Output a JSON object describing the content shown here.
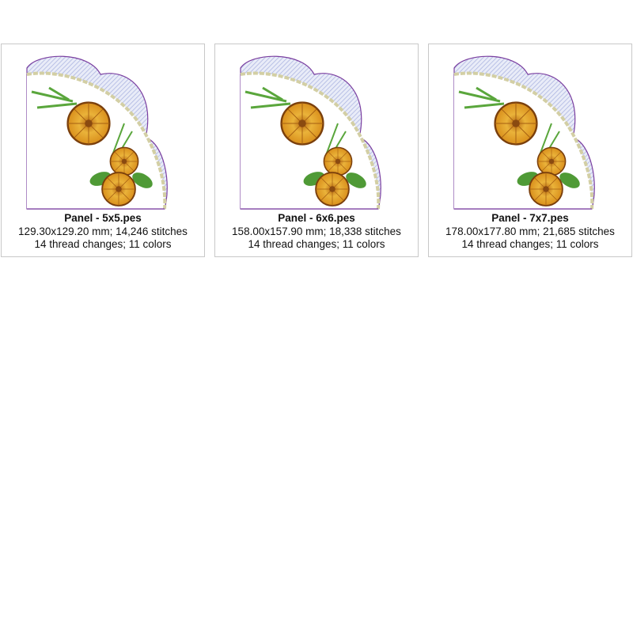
{
  "panels": [
    {
      "title": "Panel - 5x5.pes",
      "size": "129.30x129.20 mm; 14,246 stitches",
      "info": "14 thread changes; 11 colors"
    },
    {
      "title": "Panel - 6x6.pes",
      "size": "158.00x157.90 mm; 18,338 stitches",
      "info": "14 thread changes; 11 colors"
    },
    {
      "title": "Panel - 7x7.pes",
      "size": "178.00x177.80 mm; 21,685 stitches",
      "info": "14 thread changes; 11 colors"
    }
  ],
  "colors": {
    "outline": "#7a3fa0",
    "hatch": "#b8bfe6",
    "bead": "#d3cfa4",
    "petal": "#e6a72a",
    "petal_dark": "#8a4a10",
    "leaf": "#5aa63c"
  }
}
